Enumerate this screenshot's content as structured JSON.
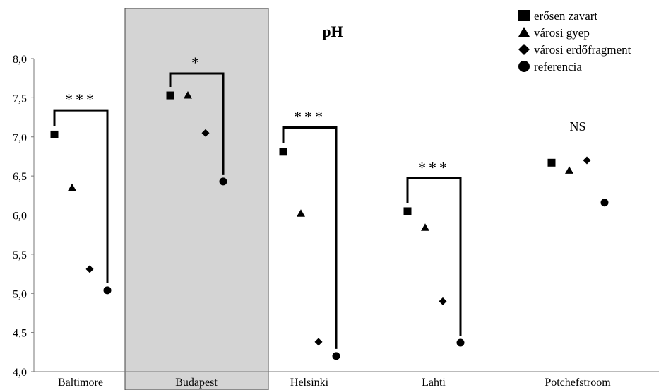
{
  "chart_data": {
    "type": "scatter",
    "title": "pH",
    "xlabel": "",
    "ylabel": "",
    "categories": [
      "Baltimore",
      "Budapest",
      "Helsinki",
      "Lahti",
      "Potchefstroom"
    ],
    "highlighted_category": "Budapest",
    "ylim": [
      4.0,
      8.0
    ],
    "yticks": [
      "4,0",
      "4,5",
      "5,0",
      "5,5",
      "6,0",
      "6,5",
      "7,0",
      "7,5",
      "8,0"
    ],
    "grid": false,
    "legend_position": "top-right",
    "series": [
      {
        "name": "erősen zavart",
        "marker": "square",
        "values": [
          7.03,
          7.53,
          6.81,
          6.05,
          6.67
        ]
      },
      {
        "name": "városi gyep",
        "marker": "triangle",
        "values": [
          6.35,
          7.53,
          6.02,
          5.84,
          6.57
        ]
      },
      {
        "name": "városi erdőfragment",
        "marker": "diamond",
        "values": [
          5.31,
          7.05,
          4.38,
          4.9,
          6.7
        ]
      },
      {
        "name": "referencia",
        "marker": "circle",
        "values": [
          5.04,
          6.43,
          4.2,
          4.37,
          6.16
        ]
      }
    ],
    "annotations": [
      "***",
      "*",
      "***",
      "***",
      "NS"
    ],
    "significance_brackets": [
      {
        "category": "Baltimore",
        "label": "***",
        "top": 7.34,
        "left_value": 7.03,
        "right_value": 5.04
      },
      {
        "category": "Budapest",
        "label": "*",
        "top": 7.81,
        "left_value": 7.53,
        "right_value": 6.43
      },
      {
        "category": "Helsinki",
        "label": "***",
        "top": 7.12,
        "left_value": 6.81,
        "right_value": 4.2
      },
      {
        "category": "Lahti",
        "label": "***",
        "top": 6.47,
        "left_value": 6.05,
        "right_value": 4.37
      }
    ],
    "ns_label": {
      "category": "Potchefstroom",
      "label": "NS"
    }
  }
}
